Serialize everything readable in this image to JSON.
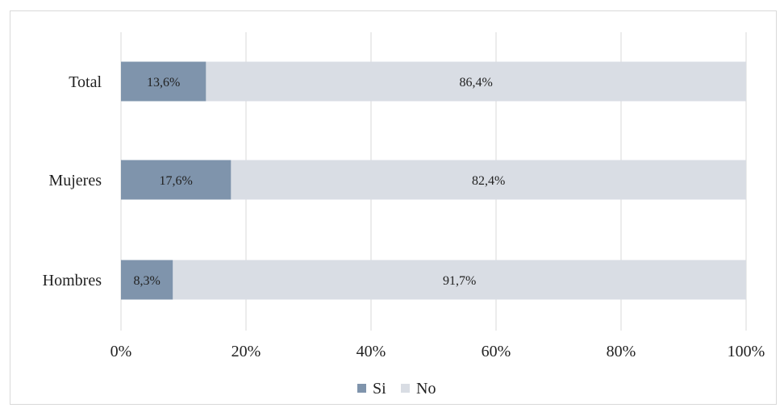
{
  "chart_data": {
    "type": "bar",
    "orientation": "horizontal",
    "stacked": true,
    "categories": [
      "Total",
      "Mujeres",
      "Hombres"
    ],
    "series": [
      {
        "name": "Si",
        "values": [
          13.6,
          17.6,
          8.3
        ],
        "labels": [
          "13,6%",
          "17,6%",
          "8,3%"
        ],
        "color": "#7f94ac"
      },
      {
        "name": "No",
        "values": [
          86.4,
          82.4,
          91.7
        ],
        "labels": [
          "86,4%",
          "82,4%",
          "91,7%"
        ],
        "color": "#d9dde4"
      }
    ],
    "xlim": [
      0,
      100
    ],
    "xticks": [
      0,
      20,
      40,
      60,
      80,
      100
    ],
    "xtick_labels": [
      "0%",
      "20%",
      "40%",
      "60%",
      "80%",
      "100%"
    ],
    "grid": "vertical",
    "legend": "bottom"
  }
}
